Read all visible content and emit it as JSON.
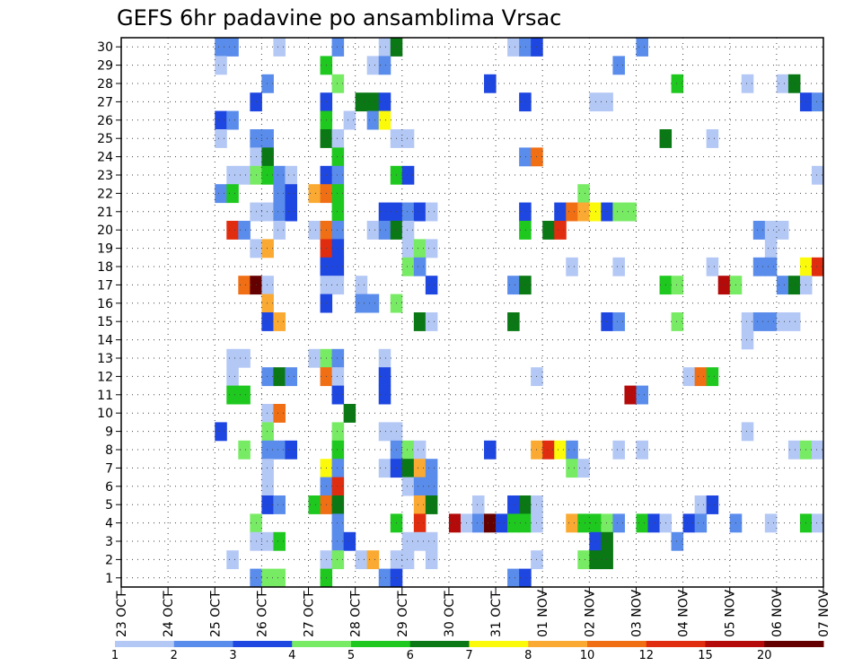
{
  "chart_data": {
    "type": "heatmap",
    "title": "GEFS 6hr padavine po ansamblima Vrsac",
    "xlabel": "",
    "ylabel": "",
    "x_ticks": [
      "23 OCT",
      "24 OCT",
      "25 OCT",
      "26 OCT",
      "27 OCT",
      "28 OCT",
      "29 OCT",
      "30 OCT",
      "31 OCT",
      "01 NOV",
      "02 NOV",
      "03 NOV",
      "04 NOV",
      "05 NOV",
      "06 NOV",
      "07 NOV"
    ],
    "y_ticks": [
      "1",
      "2",
      "3",
      "4",
      "5",
      "6",
      "7",
      "8",
      "9",
      "10",
      "11",
      "12",
      "13",
      "14",
      "15",
      "16",
      "17",
      "18",
      "19",
      "20",
      "21",
      "22",
      "23",
      "24",
      "25",
      "26",
      "27",
      "28",
      "29",
      "30"
    ],
    "time_steps": 60,
    "members": 30,
    "levels": [
      "1",
      "2",
      "3",
      "4",
      "5",
      "6",
      "7",
      "8",
      "10",
      "12",
      "15",
      "20"
    ],
    "level_colors": [
      "#b4c8f5",
      "#5a8ceb",
      "#1e46e1",
      "#78eb64",
      "#1ec81e",
      "#0a7814",
      "#fafa0a",
      "#faaa32",
      "#f06e14",
      "#e12d0f",
      "#b40a0a",
      "#640000"
    ],
    "grid": "dotted",
    "cells": [
      [
        30,
        9,
        2
      ],
      [
        30,
        10,
        2
      ],
      [
        30,
        14,
        1
      ],
      [
        30,
        19,
        2
      ],
      [
        30,
        23,
        1
      ],
      [
        30,
        24,
        6
      ],
      [
        30,
        34,
        1
      ],
      [
        30,
        35,
        2
      ],
      [
        30,
        36,
        3
      ],
      [
        30,
        45,
        2
      ],
      [
        29,
        9,
        1
      ],
      [
        29,
        18,
        5
      ],
      [
        29,
        22,
        1
      ],
      [
        29,
        23,
        2
      ],
      [
        29,
        43,
        2
      ],
      [
        28,
        13,
        2
      ],
      [
        28,
        19,
        4
      ],
      [
        28,
        32,
        3
      ],
      [
        28,
        48,
        5
      ],
      [
        28,
        54,
        1
      ],
      [
        28,
        57,
        1
      ],
      [
        28,
        58,
        6
      ],
      [
        27,
        12,
        3
      ],
      [
        27,
        18,
        3
      ],
      [
        27,
        21,
        6
      ],
      [
        27,
        22,
        6
      ],
      [
        27,
        23,
        3
      ],
      [
        27,
        35,
        3
      ],
      [
        27,
        41,
        1
      ],
      [
        27,
        42,
        1
      ],
      [
        27,
        59,
        3
      ],
      [
        27,
        60,
        2
      ],
      [
        26,
        9,
        3
      ],
      [
        26,
        10,
        2
      ],
      [
        26,
        18,
        5
      ],
      [
        26,
        20,
        1
      ],
      [
        26,
        22,
        2
      ],
      [
        26,
        23,
        7
      ],
      [
        25,
        9,
        1
      ],
      [
        25,
        12,
        2
      ],
      [
        25,
        13,
        2
      ],
      [
        25,
        18,
        6
      ],
      [
        25,
        19,
        1
      ],
      [
        25,
        24,
        1
      ],
      [
        25,
        25,
        1
      ],
      [
        25,
        47,
        6
      ],
      [
        25,
        51,
        1
      ],
      [
        24,
        12,
        1
      ],
      [
        24,
        13,
        6
      ],
      [
        24,
        19,
        5
      ],
      [
        24,
        35,
        2
      ],
      [
        24,
        36,
        9
      ],
      [
        23,
        10,
        1
      ],
      [
        23,
        11,
        1
      ],
      [
        23,
        12,
        4
      ],
      [
        23,
        13,
        5
      ],
      [
        23,
        14,
        2
      ],
      [
        23,
        15,
        1
      ],
      [
        23,
        18,
        3
      ],
      [
        23,
        19,
        2
      ],
      [
        23,
        24,
        5
      ],
      [
        23,
        25,
        3
      ],
      [
        23,
        60,
        1
      ],
      [
        22,
        9,
        2
      ],
      [
        22,
        10,
        5
      ],
      [
        22,
        14,
        2
      ],
      [
        22,
        15,
        3
      ],
      [
        22,
        17,
        8
      ],
      [
        22,
        18,
        9
      ],
      [
        22,
        19,
        5
      ],
      [
        22,
        40,
        4
      ],
      [
        21,
        12,
        1
      ],
      [
        21,
        13,
        1
      ],
      [
        21,
        14,
        2
      ],
      [
        21,
        15,
        3
      ],
      [
        21,
        19,
        5
      ],
      [
        21,
        23,
        3
      ],
      [
        21,
        24,
        3
      ],
      [
        21,
        25,
        2
      ],
      [
        21,
        26,
        3
      ],
      [
        21,
        27,
        1
      ],
      [
        21,
        35,
        3
      ],
      [
        21,
        38,
        3
      ],
      [
        21,
        39,
        9
      ],
      [
        21,
        40,
        8
      ],
      [
        21,
        41,
        7
      ],
      [
        21,
        42,
        3
      ],
      [
        21,
        43,
        4
      ],
      [
        21,
        44,
        4
      ],
      [
        20,
        10,
        10
      ],
      [
        20,
        11,
        2
      ],
      [
        20,
        14,
        1
      ],
      [
        20,
        17,
        1
      ],
      [
        20,
        18,
        9
      ],
      [
        20,
        19,
        2
      ],
      [
        20,
        22,
        1
      ],
      [
        20,
        23,
        2
      ],
      [
        20,
        24,
        6
      ],
      [
        20,
        25,
        1
      ],
      [
        20,
        35,
        5
      ],
      [
        20,
        37,
        6
      ],
      [
        20,
        38,
        10
      ],
      [
        20,
        55,
        2
      ],
      [
        20,
        56,
        1
      ],
      [
        20,
        57,
        1
      ],
      [
        19,
        12,
        1
      ],
      [
        19,
        13,
        8
      ],
      [
        19,
        18,
        10
      ],
      [
        19,
        19,
        3
      ],
      [
        19,
        25,
        1
      ],
      [
        19,
        26,
        4
      ],
      [
        19,
        27,
        1
      ],
      [
        19,
        56,
        1
      ],
      [
        18,
        18,
        3
      ],
      [
        18,
        19,
        3
      ],
      [
        18,
        25,
        4
      ],
      [
        18,
        26,
        2
      ],
      [
        18,
        39,
        1
      ],
      [
        18,
        43,
        1
      ],
      [
        18,
        51,
        1
      ],
      [
        18,
        55,
        2
      ],
      [
        18,
        56,
        2
      ],
      [
        18,
        59,
        7
      ],
      [
        18,
        60,
        10
      ],
      [
        17,
        11,
        9
      ],
      [
        17,
        12,
        12
      ],
      [
        17,
        13,
        1
      ],
      [
        17,
        18,
        1
      ],
      [
        17,
        19,
        1
      ],
      [
        17,
        21,
        1
      ],
      [
        17,
        27,
        3
      ],
      [
        17,
        34,
        2
      ],
      [
        17,
        35,
        6
      ],
      [
        17,
        47,
        5
      ],
      [
        17,
        48,
        4
      ],
      [
        17,
        52,
        11
      ],
      [
        17,
        53,
        4
      ],
      [
        17,
        57,
        2
      ],
      [
        17,
        58,
        6
      ],
      [
        17,
        59,
        1
      ],
      [
        16,
        13,
        8
      ],
      [
        16,
        18,
        3
      ],
      [
        16,
        21,
        2
      ],
      [
        16,
        22,
        2
      ],
      [
        16,
        24,
        4
      ],
      [
        15,
        13,
        3
      ],
      [
        15,
        14,
        8
      ],
      [
        15,
        26,
        6
      ],
      [
        15,
        27,
        1
      ],
      [
        15,
        34,
        6
      ],
      [
        15,
        42,
        3
      ],
      [
        15,
        43,
        2
      ],
      [
        15,
        48,
        4
      ],
      [
        15,
        54,
        1
      ],
      [
        15,
        55,
        2
      ],
      [
        15,
        56,
        2
      ],
      [
        15,
        57,
        1
      ],
      [
        15,
        58,
        1
      ],
      [
        14,
        54,
        1
      ],
      [
        13,
        10,
        1
      ],
      [
        13,
        11,
        1
      ],
      [
        13,
        17,
        1
      ],
      [
        13,
        18,
        4
      ],
      [
        13,
        19,
        2
      ],
      [
        13,
        23,
        1
      ],
      [
        12,
        10,
        1
      ],
      [
        12,
        13,
        2
      ],
      [
        12,
        14,
        6
      ],
      [
        12,
        15,
        2
      ],
      [
        12,
        18,
        9
      ],
      [
        12,
        19,
        1
      ],
      [
        12,
        23,
        3
      ],
      [
        12,
        36,
        1
      ],
      [
        12,
        49,
        1
      ],
      [
        12,
        50,
        9
      ],
      [
        12,
        51,
        5
      ],
      [
        11,
        10,
        5
      ],
      [
        11,
        11,
        5
      ],
      [
        11,
        19,
        3
      ],
      [
        11,
        23,
        3
      ],
      [
        11,
        44,
        11
      ],
      [
        11,
        45,
        2
      ],
      [
        10,
        13,
        1
      ],
      [
        10,
        14,
        9
      ],
      [
        10,
        20,
        6
      ],
      [
        9,
        9,
        3
      ],
      [
        9,
        13,
        4
      ],
      [
        9,
        19,
        4
      ],
      [
        9,
        23,
        1
      ],
      [
        9,
        24,
        1
      ],
      [
        9,
        54,
        1
      ],
      [
        8,
        11,
        4
      ],
      [
        8,
        13,
        2
      ],
      [
        8,
        14,
        2
      ],
      [
        8,
        15,
        3
      ],
      [
        8,
        19,
        5
      ],
      [
        8,
        24,
        2
      ],
      [
        8,
        25,
        4
      ],
      [
        8,
        26,
        1
      ],
      [
        8,
        32,
        3
      ],
      [
        8,
        36,
        8
      ],
      [
        8,
        37,
        10
      ],
      [
        8,
        38,
        7
      ],
      [
        8,
        39,
        2
      ],
      [
        8,
        43,
        1
      ],
      [
        8,
        45,
        1
      ],
      [
        8,
        58,
        1
      ],
      [
        8,
        59,
        4
      ],
      [
        8,
        60,
        1
      ],
      [
        7,
        13,
        1
      ],
      [
        7,
        18,
        7
      ],
      [
        7,
        19,
        2
      ],
      [
        7,
        23,
        1
      ],
      [
        7,
        24,
        3
      ],
      [
        7,
        25,
        6
      ],
      [
        7,
        26,
        8
      ],
      [
        7,
        27,
        2
      ],
      [
        7,
        39,
        4
      ],
      [
        7,
        40,
        1
      ],
      [
        6,
        13,
        1
      ],
      [
        6,
        18,
        2
      ],
      [
        6,
        19,
        10
      ],
      [
        6,
        25,
        1
      ],
      [
        6,
        26,
        2
      ],
      [
        6,
        27,
        2
      ],
      [
        5,
        13,
        3
      ],
      [
        5,
        14,
        2
      ],
      [
        5,
        17,
        5
      ],
      [
        5,
        18,
        9
      ],
      [
        5,
        19,
        6
      ],
      [
        5,
        26,
        8
      ],
      [
        5,
        27,
        6
      ],
      [
        5,
        31,
        1
      ],
      [
        5,
        34,
        3
      ],
      [
        5,
        35,
        6
      ],
      [
        5,
        36,
        1
      ],
      [
        5,
        50,
        1
      ],
      [
        5,
        51,
        3
      ],
      [
        4,
        12,
        4
      ],
      [
        4,
        19,
        2
      ],
      [
        4,
        24,
        5
      ],
      [
        4,
        26,
        10
      ],
      [
        4,
        29,
        11
      ],
      [
        4,
        30,
        1
      ],
      [
        4,
        31,
        2
      ],
      [
        4,
        32,
        12
      ],
      [
        4,
        33,
        3
      ],
      [
        4,
        34,
        5
      ],
      [
        4,
        35,
        5
      ],
      [
        4,
        36,
        1
      ],
      [
        4,
        39,
        8
      ],
      [
        4,
        40,
        5
      ],
      [
        4,
        41,
        5
      ],
      [
        4,
        42,
        4
      ],
      [
        4,
        43,
        2
      ],
      [
        4,
        45,
        5
      ],
      [
        4,
        46,
        3
      ],
      [
        4,
        47,
        1
      ],
      [
        4,
        49,
        3
      ],
      [
        4,
        50,
        2
      ],
      [
        4,
        53,
        2
      ],
      [
        4,
        56,
        1
      ],
      [
        4,
        59,
        5
      ],
      [
        4,
        60,
        1
      ],
      [
        3,
        12,
        1
      ],
      [
        3,
        13,
        1
      ],
      [
        3,
        14,
        5
      ],
      [
        3,
        19,
        2
      ],
      [
        3,
        20,
        3
      ],
      [
        3,
        25,
        1
      ],
      [
        3,
        26,
        1
      ],
      [
        3,
        27,
        1
      ],
      [
        3,
        41,
        3
      ],
      [
        3,
        42,
        6
      ],
      [
        3,
        48,
        2
      ],
      [
        2,
        10,
        1
      ],
      [
        2,
        18,
        1
      ],
      [
        2,
        19,
        4
      ],
      [
        2,
        21,
        1
      ],
      [
        2,
        22,
        8
      ],
      [
        2,
        24,
        1
      ],
      [
        2,
        25,
        1
      ],
      [
        2,
        27,
        1
      ],
      [
        2,
        36,
        1
      ],
      [
        2,
        40,
        4
      ],
      [
        2,
        41,
        6
      ],
      [
        2,
        42,
        6
      ],
      [
        1,
        12,
        2
      ],
      [
        1,
        13,
        4
      ],
      [
        1,
        14,
        4
      ],
      [
        1,
        18,
        5
      ],
      [
        1,
        23,
        2
      ],
      [
        1,
        24,
        3
      ],
      [
        1,
        34,
        2
      ],
      [
        1,
        35,
        3
      ]
    ]
  }
}
